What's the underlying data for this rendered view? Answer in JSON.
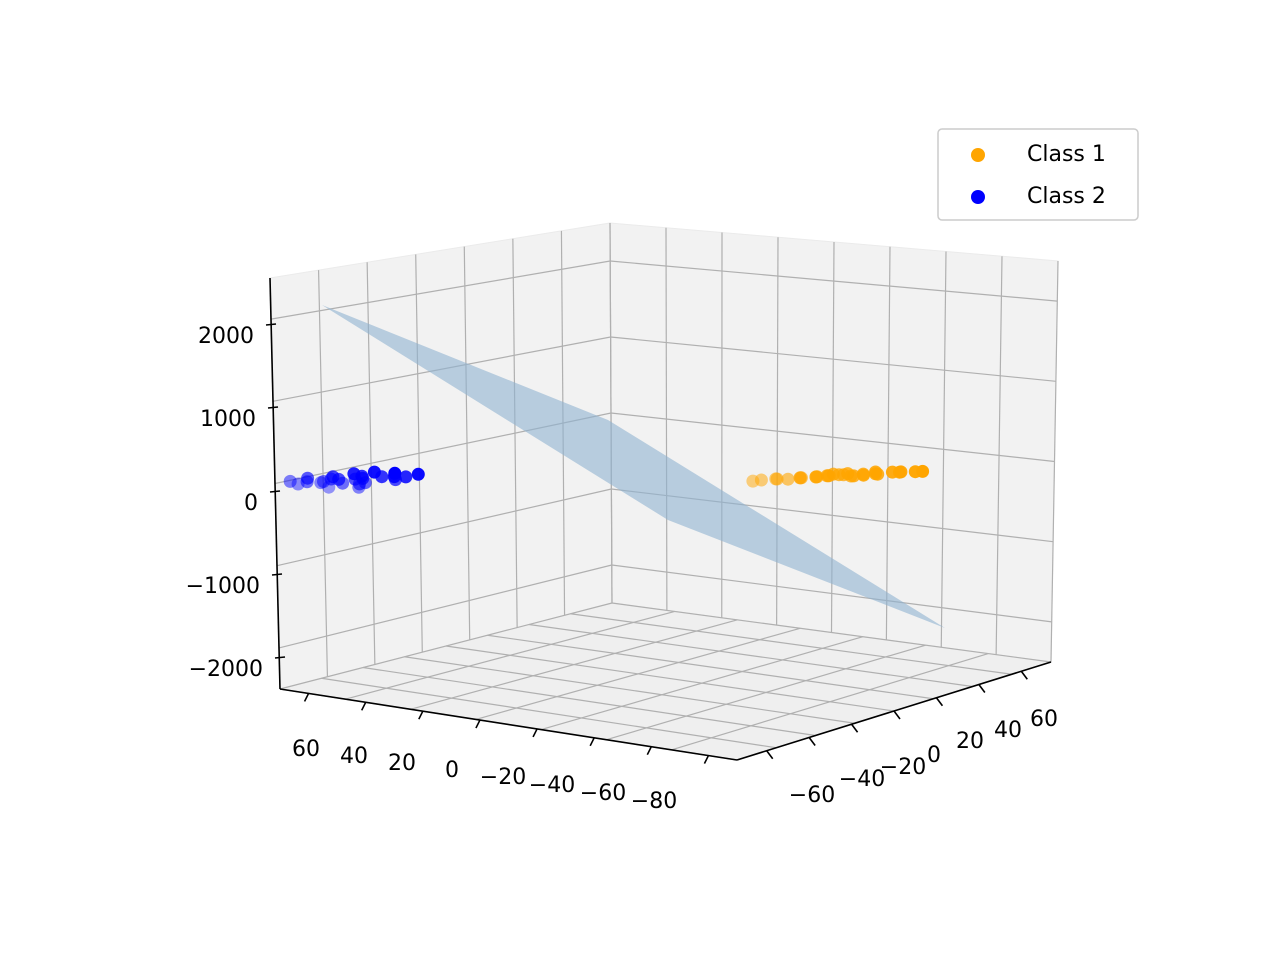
{
  "chart_data": {
    "type": "scatter",
    "projection": "3d",
    "title": "",
    "xlabel": "",
    "ylabel": "",
    "zlabel": "",
    "grid": true,
    "legend_position": "top-right",
    "x_ticks": [
      "60",
      "40",
      "20",
      "0",
      "−20",
      "−40",
      "−60",
      "−80"
    ],
    "y_ticks": [
      "−60",
      "−40",
      "−20",
      "0",
      "20",
      "40",
      "60"
    ],
    "z_ticks": [
      "2000",
      "1000",
      "0",
      "−1000",
      "−2000"
    ],
    "series": [
      {
        "name": "Class 1",
        "color": "#ffa500",
        "points": [
          [
            -52,
            55,
            -25
          ],
          [
            -49,
            55,
            -15
          ],
          [
            -46,
            53,
            -10
          ],
          [
            -44,
            52,
            -5
          ],
          [
            -44,
            54,
            0
          ],
          [
            -40,
            50,
            -20
          ],
          [
            -40,
            50,
            10
          ],
          [
            -38,
            48,
            -40
          ],
          [
            -38,
            52,
            -10
          ],
          [
            -35,
            50,
            0
          ],
          [
            -34,
            48,
            -30
          ],
          [
            -33,
            47,
            10
          ],
          [
            -30,
            50,
            -5
          ],
          [
            -30,
            45,
            10
          ],
          [
            -28,
            48,
            20
          ],
          [
            -27,
            50,
            30
          ],
          [
            -26,
            46,
            5
          ],
          [
            -25,
            47,
            15
          ],
          [
            -24,
            48,
            25
          ],
          [
            -23,
            45,
            0
          ],
          [
            -22,
            46,
            10
          ],
          [
            -20,
            47,
            20
          ],
          [
            -18,
            44,
            5
          ],
          [
            -17,
            45,
            15
          ],
          [
            -15,
            46,
            30
          ],
          [
            -13,
            44,
            10
          ],
          [
            -10,
            43,
            25
          ],
          [
            -8,
            44,
            40
          ],
          [
            -5,
            42,
            30
          ],
          [
            -3,
            41,
            20
          ]
        ]
      },
      {
        "name": "Class 2",
        "color": "#0000ff",
        "points": [
          [
            60,
            -35,
            -10
          ],
          [
            58,
            -45,
            0
          ],
          [
            56,
            -40,
            30
          ],
          [
            55,
            -30,
            -20
          ],
          [
            54,
            -50,
            5
          ],
          [
            52,
            -42,
            20
          ],
          [
            50,
            -38,
            -5
          ],
          [
            50,
            -48,
            -15
          ],
          [
            48,
            -33,
            10
          ],
          [
            46,
            -44,
            25
          ],
          [
            46,
            -36,
            -30
          ],
          [
            44,
            -52,
            0
          ],
          [
            42,
            -40,
            15
          ],
          [
            40,
            -46,
            -20
          ],
          [
            40,
            -30,
            30
          ],
          [
            38,
            -49,
            5
          ],
          [
            36,
            -42,
            -10
          ],
          [
            34,
            -38,
            20
          ],
          [
            32,
            -45,
            -5
          ],
          [
            30,
            -34,
            10
          ],
          [
            28,
            -50,
            0
          ],
          [
            26,
            -40,
            -25
          ],
          [
            24,
            -47,
            15
          ],
          [
            22,
            -36,
            5
          ],
          [
            20,
            -44,
            -15
          ]
        ]
      }
    ],
    "plane": {
      "color": "#8fb3d0",
      "corners": [
        [
          70,
          -70,
          2200
        ],
        [
          -90,
          -70,
          500
        ],
        [
          -90,
          70,
          -1800
        ],
        [
          70,
          70,
          -200
        ]
      ]
    },
    "legend": [
      {
        "label": "Class 1",
        "color": "#ffa500"
      },
      {
        "label": "Class 2",
        "color": "#0000ff"
      }
    ]
  }
}
